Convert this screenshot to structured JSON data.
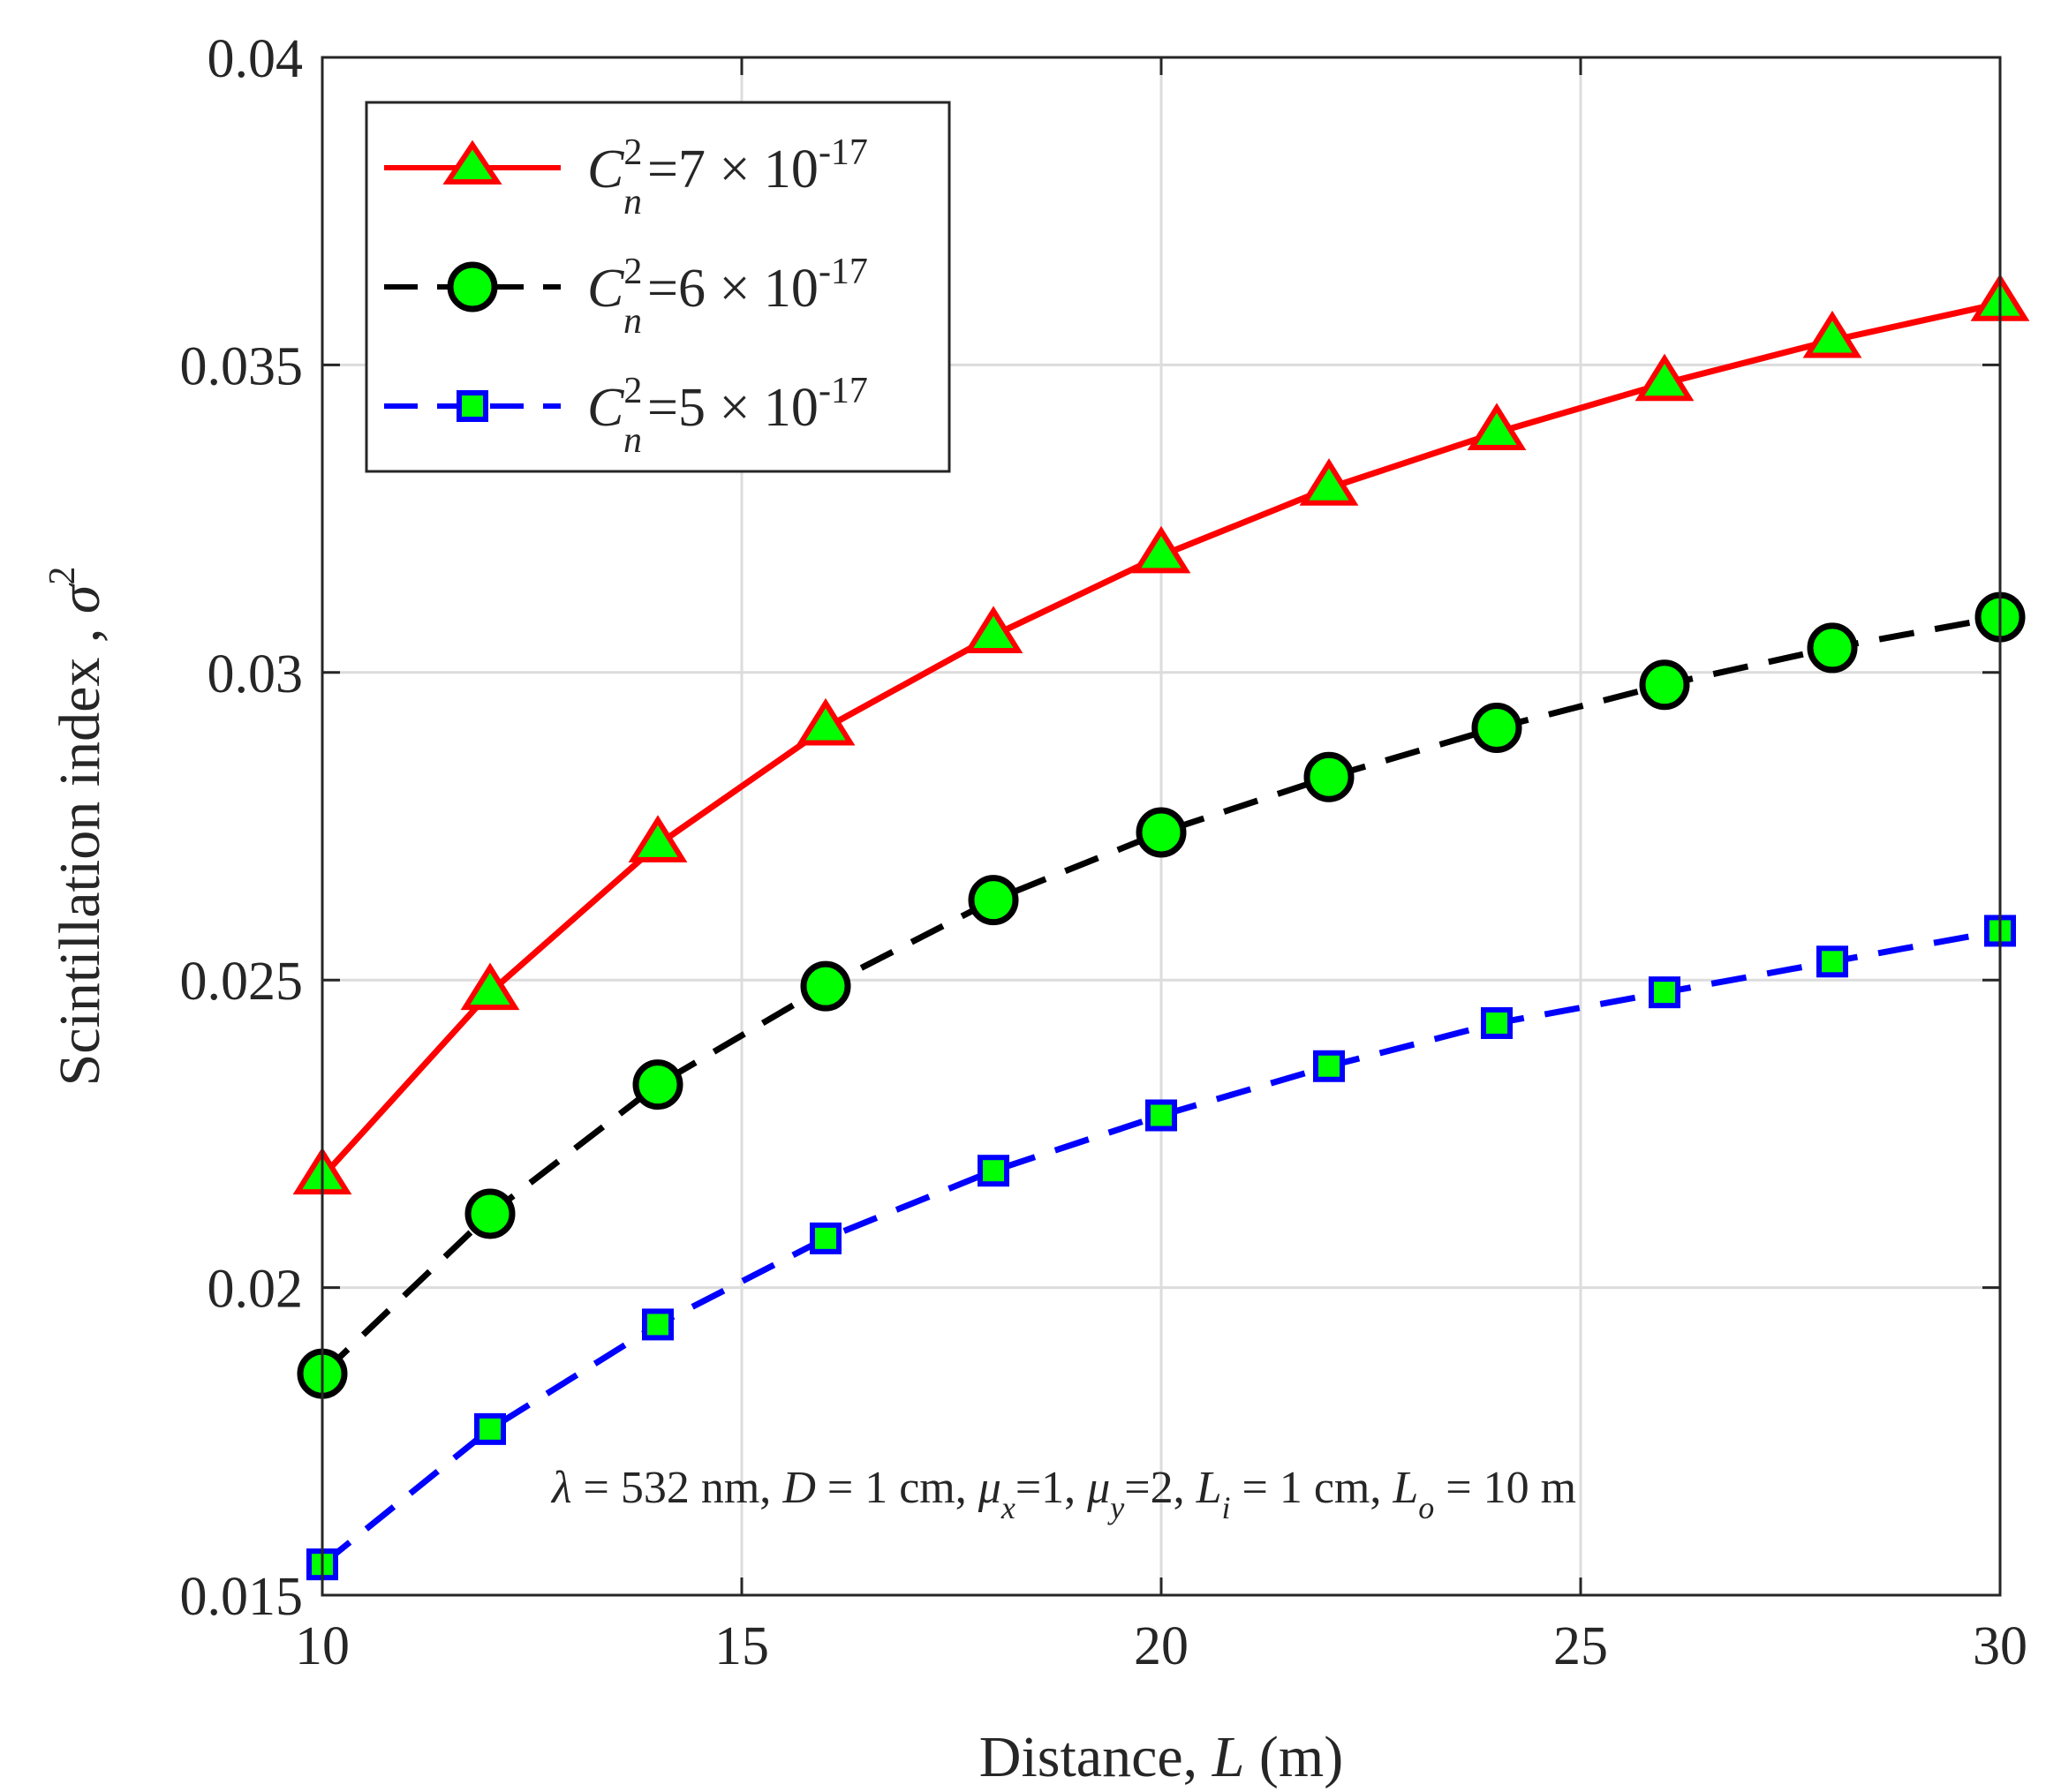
{
  "chart_data": {
    "type": "line",
    "xlabel": {
      "text": "Distance, ",
      "var": "L",
      "unit": " (m)"
    },
    "ylabel": {
      "text": "Scintillation index , ",
      "symbol": "σ",
      "sup": "2"
    },
    "xlim": [
      10,
      30
    ],
    "ylim": [
      0.015,
      0.04
    ],
    "xticks": [
      10,
      15,
      20,
      25,
      30
    ],
    "xtick_labels": [
      "10",
      "15",
      "20",
      "25",
      "30"
    ],
    "yticks": [
      0.015,
      0.02,
      0.025,
      0.03,
      0.035,
      0.04
    ],
    "ytick_labels": [
      "0.015",
      "0.02",
      "0.025",
      "0.03",
      "0.035",
      "0.04"
    ],
    "grid": true,
    "legend_position": "top-left",
    "x": [
      10,
      12,
      14,
      16,
      18,
      20,
      22,
      24,
      26,
      28,
      30
    ],
    "series": [
      {
        "name": "C_n^2=7 × 10^-17",
        "label_C": "C",
        "label_sup": "2",
        "label_sub": "n",
        "label_mid": "=7 × 10",
        "label_exp": "-17",
        "color": "#ff0000",
        "dash": "solid",
        "marker": "triangle",
        "marker_fill": "#00ff00",
        "values": [
          0.0218,
          0.0248,
          0.0272,
          0.0291,
          0.0306,
          0.0319,
          0.033,
          0.0339,
          0.0347,
          0.0354,
          0.036
        ]
      },
      {
        "name": "C_n^2=6 × 10^-17",
        "label_C": "C",
        "label_sup": "2",
        "label_sub": "n",
        "label_mid": "=6 × 10",
        "label_exp": "-17",
        "color": "#000000",
        "dash": "dashed",
        "marker": "circle",
        "marker_fill": "#00ff00",
        "values": [
          0.0186,
          0.0212,
          0.0233,
          0.0249,
          0.0263,
          0.0274,
          0.0283,
          0.0291,
          0.0298,
          0.0304,
          0.0309
        ]
      },
      {
        "name": "C_n^2=5 × 10^-17",
        "label_C": "C",
        "label_sup": "2",
        "label_sub": "n",
        "label_mid": "=5 × 10",
        "label_exp": "-17",
        "color": "#0000ff",
        "dash": "dashed",
        "marker": "square",
        "marker_fill": "#00ff00",
        "values": [
          0.0155,
          0.0177,
          0.0194,
          0.0208,
          0.0219,
          0.0228,
          0.0236,
          0.0243,
          0.0248,
          0.0253,
          0.0258
        ]
      }
    ],
    "annotation": {
      "lambda": "λ",
      "p1": " = 532 nm, ",
      "D": "D",
      "p2": " = 1 cm, ",
      "mu": "μ",
      "sub_x": "x",
      "p3": "=1, ",
      "sub_y": "y",
      "p4": "=2, ",
      "L": "L",
      "sub_i": "i",
      "p5": " = 1 cm, ",
      "sub_o": "o",
      "p6": " = 10 m"
    }
  }
}
